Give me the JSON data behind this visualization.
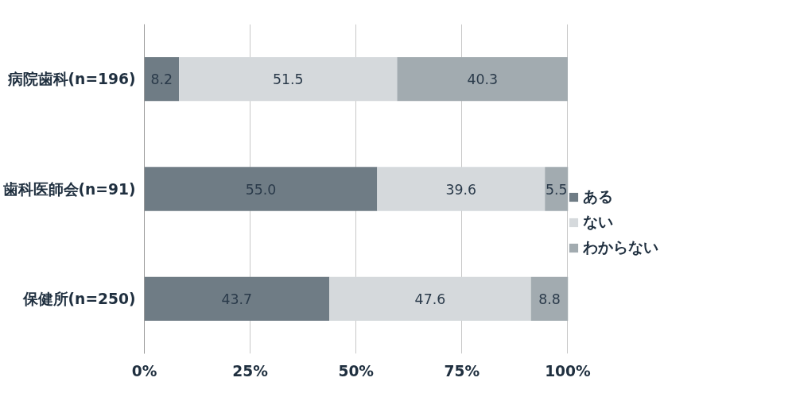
{
  "chart_data": {
    "type": "bar",
    "orientation": "horizontal",
    "stacked": true,
    "categories": [
      "病院歯科(n=196)",
      "歯科医師会(n=91)",
      "保健所(n=250)"
    ],
    "series": [
      {
        "name": "ある",
        "color": "#6f7c85",
        "values": [
          8.2,
          55.0,
          43.7
        ],
        "value_labels": [
          "8.2",
          "55.0",
          "43.7"
        ]
      },
      {
        "name": "ない",
        "color": "#d5d9dc",
        "values": [
          51.5,
          39.6,
          47.6
        ],
        "value_labels": [
          "51.5",
          "39.6",
          "47.6"
        ]
      },
      {
        "name": "わからない",
        "color": "#a2abb0",
        "values": [
          40.3,
          5.5,
          8.8
        ],
        "value_labels": [
          "40.3",
          "5.5",
          "8.8"
        ]
      }
    ],
    "xlim": [
      0,
      100.1
    ],
    "xticks": [
      {
        "value": 0,
        "label": "0%"
      },
      {
        "value": 25,
        "label": "25%"
      },
      {
        "value": 50,
        "label": "50%"
      },
      {
        "value": 75,
        "label": "75%"
      },
      {
        "value": 100,
        "label": "100%"
      }
    ],
    "grid": "x",
    "legend": "right"
  }
}
